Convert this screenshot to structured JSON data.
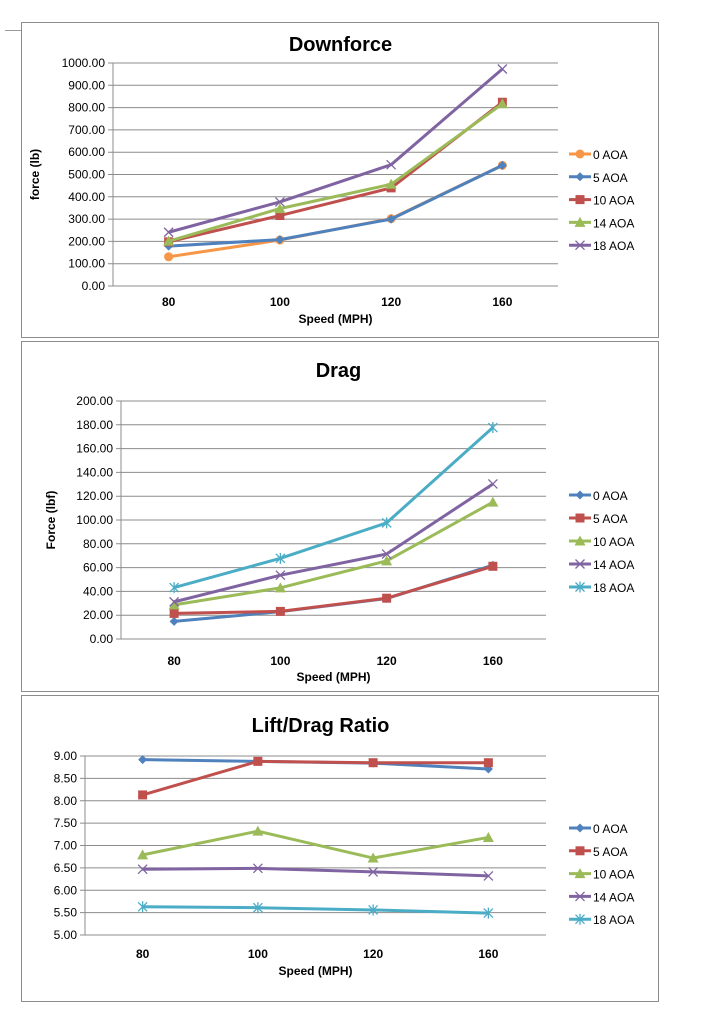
{
  "chart_data": [
    {
      "type": "line",
      "title": "Downforce",
      "xlabel": "Speed (MPH)",
      "ylabel": "force (lb)",
      "categories": [
        "80",
        "100",
        "120",
        "160"
      ],
      "ylim": [
        0,
        1000
      ],
      "yticks": [
        "0.00",
        "100.00",
        "200.00",
        "300.00",
        "400.00",
        "500.00",
        "600.00",
        "700.00",
        "800.00",
        "900.00",
        "1000.00"
      ],
      "grid": true,
      "legend": "right",
      "series": [
        {
          "name": "0 AOA",
          "color": "#F79646",
          "marker": "circle",
          "values": [
            131,
            206,
            302,
            541
          ]
        },
        {
          "name": "5 AOA",
          "color": "#4F81BD",
          "marker": "diamond",
          "values": [
            179,
            208,
            300,
            541
          ]
        },
        {
          "name": "10 AOA",
          "color": "#C0504D",
          "marker": "square",
          "values": [
            198,
            316,
            440,
            824
          ]
        },
        {
          "name": "14 AOA",
          "color": "#9BBB59",
          "marker": "triangle",
          "values": [
            201,
            347,
            456,
            817
          ]
        },
        {
          "name": "18 AOA",
          "color": "#8064A2",
          "marker": "x",
          "values": [
            241,
            377,
            544,
            973
          ]
        }
      ]
    },
    {
      "type": "line",
      "title": "Drag",
      "xlabel": "Speed (MPH)",
      "ylabel": "Force (lbf)",
      "categories": [
        "80",
        "100",
        "120",
        "160"
      ],
      "ylim": [
        0,
        200
      ],
      "yticks": [
        "0.00",
        "20.00",
        "40.00",
        "60.00",
        "80.00",
        "100.00",
        "120.00",
        "140.00",
        "160.00",
        "180.00",
        "200.00"
      ],
      "grid": true,
      "legend": "right",
      "series": [
        {
          "name": "0 AOA",
          "color": "#4F81BD",
          "marker": "diamond",
          "values": [
            14.8,
            23.0,
            34.0,
            62.0
          ]
        },
        {
          "name": "5 AOA",
          "color": "#C0504D",
          "marker": "square",
          "values": [
            21.5,
            23.2,
            34.3,
            61.1
          ]
        },
        {
          "name": "10 AOA",
          "color": "#9BBB59",
          "marker": "triangle",
          "values": [
            28.7,
            43.0,
            65.6,
            115.0
          ]
        },
        {
          "name": "14 AOA",
          "color": "#8064A2",
          "marker": "x",
          "values": [
            31.2,
            53.6,
            71.4,
            130.3
          ]
        },
        {
          "name": "18 AOA",
          "color": "#4BACC6",
          "marker": "asterisk",
          "values": [
            43.2,
            67.8,
            97.6,
            177.7
          ]
        }
      ]
    },
    {
      "type": "line",
      "title": "Lift/Drag Ratio",
      "xlabel": "Speed (MPH)",
      "ylabel": "",
      "categories": [
        "80",
        "100",
        "120",
        "160"
      ],
      "ylim": [
        5,
        9
      ],
      "yticks": [
        "5.00",
        "5.50",
        "6.00",
        "6.50",
        "7.00",
        "7.50",
        "8.00",
        "8.50",
        "9.00"
      ],
      "grid": true,
      "legend": "right",
      "series": [
        {
          "name": "0 AOA",
          "color": "#4F81BD",
          "marker": "diamond",
          "values": [
            8.92,
            8.88,
            8.84,
            8.71
          ]
        },
        {
          "name": "5 AOA",
          "color": "#C0504D",
          "marker": "square",
          "values": [
            8.13,
            8.88,
            8.85,
            8.85
          ]
        },
        {
          "name": "10 AOA",
          "color": "#9BBB59",
          "marker": "triangle",
          "values": [
            6.79,
            7.32,
            6.72,
            7.18
          ]
        },
        {
          "name": "14 AOA",
          "color": "#8064A2",
          "marker": "x",
          "values": [
            6.47,
            6.49,
            6.41,
            6.32
          ]
        },
        {
          "name": "18 AOA",
          "color": "#4BACC6",
          "marker": "asterisk",
          "values": [
            5.63,
            5.61,
            5.56,
            5.49
          ]
        }
      ]
    }
  ]
}
